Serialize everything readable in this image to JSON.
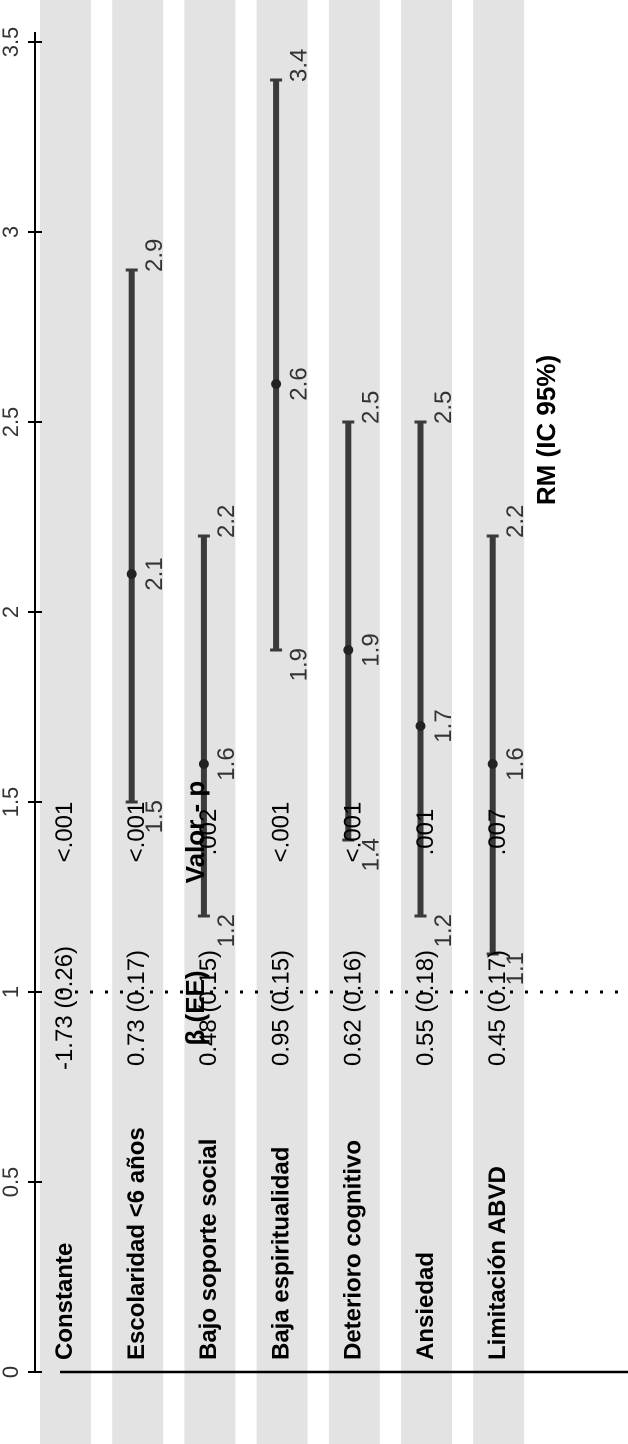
{
  "colors": {
    "band": "#e3e3e3",
    "ink": "#000000",
    "whisker": "#3a3a3a",
    "dot": "#222222",
    "label": "#333333"
  },
  "headers": {
    "beta": "β (EE)",
    "pvalue": "Valor - p",
    "or": "RM (IC 95%)"
  },
  "chart_data": {
    "type": "forest",
    "title": "",
    "xlabel": "RM (IC 95%)",
    "xlim": [
      0,
      3.5
    ],
    "ticks": [
      0,
      0.5,
      1,
      1.5,
      2,
      2.5,
      3,
      3.5
    ],
    "tick_labels": [
      "0",
      "0.5",
      "1",
      "1.5",
      "2",
      "2.5",
      "3",
      "3.5"
    ],
    "reference_line": 1,
    "rows": [
      {
        "variable": "Constante",
        "beta": "-1.73 (0.26)",
        "p": "<.001",
        "or": null,
        "lo": null,
        "hi": null,
        "or_label": "",
        "lo_label": "",
        "hi_label": ""
      },
      {
        "variable": "Escolaridad <6 años",
        "beta": "0.73 (0.17)",
        "p": "<.001",
        "or": 2.1,
        "lo": 1.5,
        "hi": 2.9,
        "or_label": "2.1",
        "lo_label": "1.5",
        "hi_label": "2.9"
      },
      {
        "variable": "Bajo soporte social",
        "beta": "0.48 (0.15)",
        "p": ".002",
        "or": 1.6,
        "lo": 1.2,
        "hi": 2.2,
        "or_label": "1.6",
        "lo_label": "1.2",
        "hi_label": "2.2"
      },
      {
        "variable": "Baja espiritualidad",
        "beta": "0.95 (0.15)",
        "p": "<.001",
        "or": 2.6,
        "lo": 1.9,
        "hi": 3.4,
        "or_label": "2.6",
        "lo_label": "1.9",
        "hi_label": "3.4"
      },
      {
        "variable": "Deterioro cognitivo",
        "beta": "0.62 (0.16)",
        "p": "<.001",
        "or": 1.9,
        "lo": 1.4,
        "hi": 2.5,
        "or_label": "1.9",
        "lo_label": "1.4",
        "hi_label": "2.5"
      },
      {
        "variable": "Ansiedad",
        "beta": "0.55 (0.18)",
        "p": ".001",
        "or": 1.7,
        "lo": 1.2,
        "hi": 2.5,
        "or_label": "1.7",
        "lo_label": "1.2",
        "hi_label": "2.5"
      },
      {
        "variable": "Limitación ABVD",
        "beta": "0.45 (0.17)",
        "p": ".007",
        "or": 1.6,
        "lo": 1.1,
        "hi": 2.2,
        "or_label": "1.6",
        "lo_label": "1.1",
        "hi_label": "2.2"
      }
    ]
  }
}
